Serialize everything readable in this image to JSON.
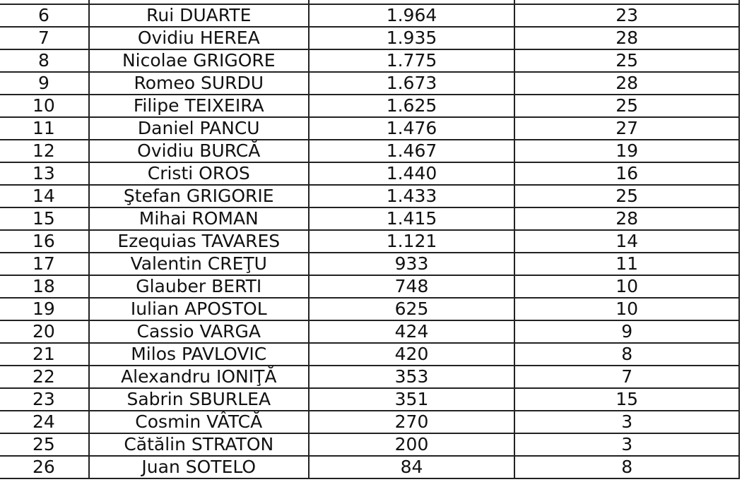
{
  "table": {
    "rows": [
      [
        "",
        "",
        "",
        ""
      ],
      [
        "6",
        "Rui DUARTE",
        "1.964",
        "23"
      ],
      [
        "7",
        "Ovidiu HEREA",
        "1.935",
        "28"
      ],
      [
        "8",
        "Nicolae GRIGORE",
        "1.775",
        "25"
      ],
      [
        "9",
        "Romeo SURDU",
        "1.673",
        "28"
      ],
      [
        "10",
        "Filipe TEIXEIRA",
        "1.625",
        "25"
      ],
      [
        "11",
        "Daniel PANCU",
        "1.476",
        "27"
      ],
      [
        "12",
        "Ovidiu BURCĂ",
        "1.467",
        "19"
      ],
      [
        "13",
        "Cristi OROS",
        "1.440",
        "16"
      ],
      [
        "14",
        "Ştefan GRIGORIE",
        "1.433",
        "25"
      ],
      [
        "15",
        "Mihai ROMAN",
        "1.415",
        "28"
      ],
      [
        "16",
        "Ezequias TAVARES",
        "1.121",
        "14"
      ],
      [
        "17",
        "Valentin CREŢU",
        "933",
        "11"
      ],
      [
        "18",
        "Glauber BERTI",
        "748",
        "10"
      ],
      [
        "19",
        "Iulian APOSTOL",
        "625",
        "10"
      ],
      [
        "20",
        "Cassio VARGA",
        "424",
        "9"
      ],
      [
        "21",
        "Milos PAVLOVIC",
        "420",
        "8"
      ],
      [
        "22",
        "Alexandru IONIŢĂ",
        "353",
        "7"
      ],
      [
        "23",
        "Sabrin SBURLEA",
        "351",
        "15"
      ],
      [
        "24",
        "Cosmin VÂTCĂ",
        "270",
        "3"
      ],
      [
        "25",
        "Cătălin STRATON",
        "200",
        "3"
      ],
      [
        "26",
        "Juan SOTELO",
        "84",
        "8"
      ]
    ]
  }
}
